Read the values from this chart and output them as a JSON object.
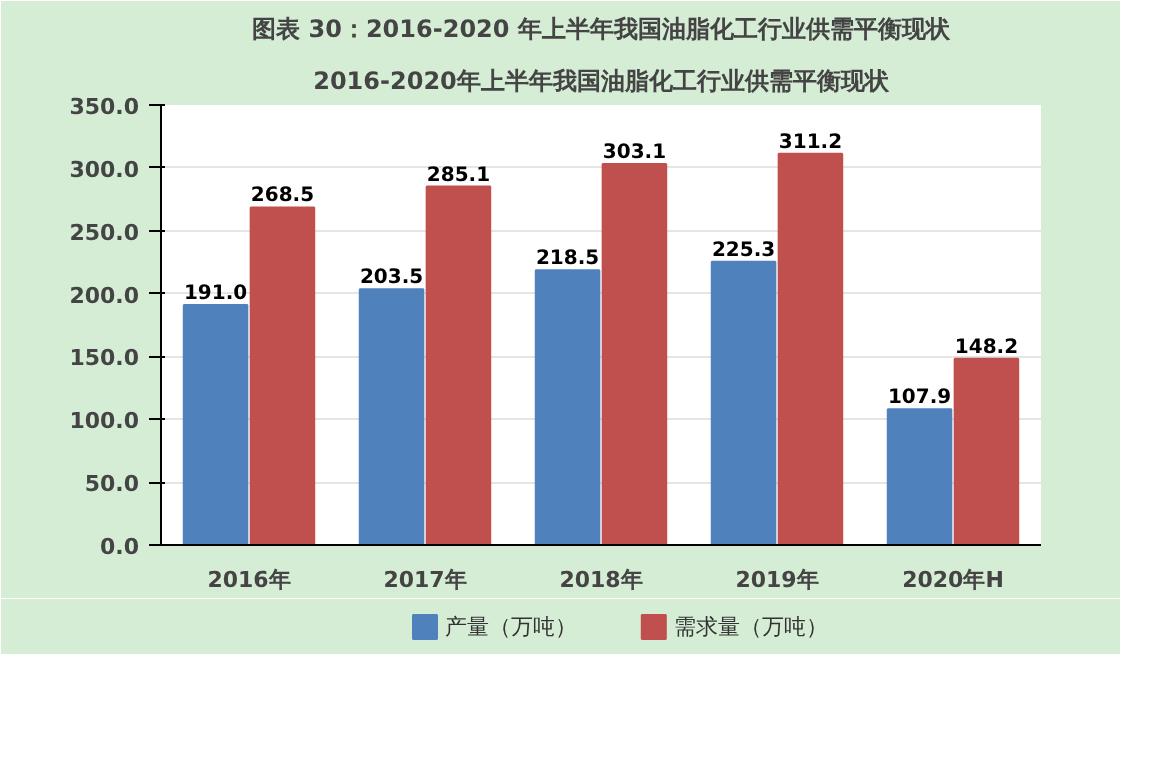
{
  "chart_data": {
    "type": "bar",
    "title": "图表 30：2016-2020 年上半年我国油脂化工行业供需平衡现状",
    "subtitle": "2016-2020年上半年我国油脂化工行业供需平衡现状",
    "categories": [
      "2016年",
      "2017年",
      "2018年",
      "2019年",
      "2020年H"
    ],
    "series": [
      {
        "name": "产量（万吨）",
        "color": "#4f81bd",
        "values": [
          191.0,
          203.5,
          218.5,
          225.3,
          107.9
        ],
        "value_labels": [
          "191.0",
          "203.5",
          "218.5",
          "225.3",
          "107.9"
        ]
      },
      {
        "name": "需求量（万吨）",
        "color": "#c0504d",
        "values": [
          268.5,
          285.1,
          303.1,
          311.2,
          148.2
        ],
        "value_labels": [
          "268.5",
          "285.1",
          "303.1",
          "311.2",
          "148.2"
        ]
      }
    ],
    "ylim": [
      0,
      350
    ],
    "yticks": [
      {
        "value": 0,
        "label": "0.0"
      },
      {
        "value": 50,
        "label": "50.0"
      },
      {
        "value": 100,
        "label": "100.0"
      },
      {
        "value": 150,
        "label": "150.0"
      },
      {
        "value": 200,
        "label": "200.0"
      },
      {
        "value": 250,
        "label": "250.0"
      },
      {
        "value": 300,
        "label": "300.0"
      },
      {
        "value": 350,
        "label": "350.0"
      }
    ],
    "grid": "y",
    "legend": "bottom"
  }
}
